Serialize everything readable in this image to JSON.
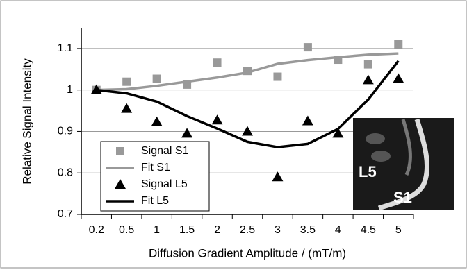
{
  "chart_data": {
    "type": "line",
    "y_label": "Relative Signal Intensity",
    "x_label": "Diffusion Gradient Amplitude / (mT/m)",
    "categories": [
      "0.2",
      "0.5",
      "1",
      "1.5",
      "2",
      "2.5",
      "3",
      "3.5",
      "4",
      "4.5",
      "5"
    ],
    "series": [
      {
        "name": "Signal S1",
        "color": "#999999",
        "mode": "square",
        "values": [
          1.0,
          1.02,
          1.027,
          1.013,
          1.066,
          1.046,
          1.032,
          1.103,
          1.073,
          1.062,
          1.11
        ]
      },
      {
        "name": "Fit S1",
        "color": "#999999",
        "mode": "line",
        "values": [
          1.0,
          1.002,
          1.01,
          1.02,
          1.03,
          1.042,
          1.063,
          1.072,
          1.079,
          1.085,
          1.088
        ]
      },
      {
        "name": "Signal L5",
        "color": "#000000",
        "mode": "triangle",
        "values": [
          1.0,
          0.955,
          0.923,
          0.895,
          0.927,
          0.9,
          0.79,
          0.925,
          0.895,
          1.024,
          1.027
        ]
      },
      {
        "name": "Fit L5",
        "color": "#000000",
        "mode": "line",
        "values": [
          1.0,
          0.992,
          0.972,
          0.937,
          0.907,
          0.875,
          0.862,
          0.87,
          0.906,
          0.977,
          1.07
        ]
      }
    ],
    "ylim": [
      0.7,
      1.15
    ],
    "yticks": [
      {
        "value": 0.7,
        "label": "0.7"
      },
      {
        "value": 0.8,
        "label": "0.8"
      },
      {
        "value": 0.9,
        "label": "0.9"
      },
      1,
      {
        "value": 1.1,
        "label": "1.1"
      }
    ],
    "grid": true,
    "legend": "lower left",
    "inset_labels": [
      "L5",
      "S1"
    ]
  }
}
